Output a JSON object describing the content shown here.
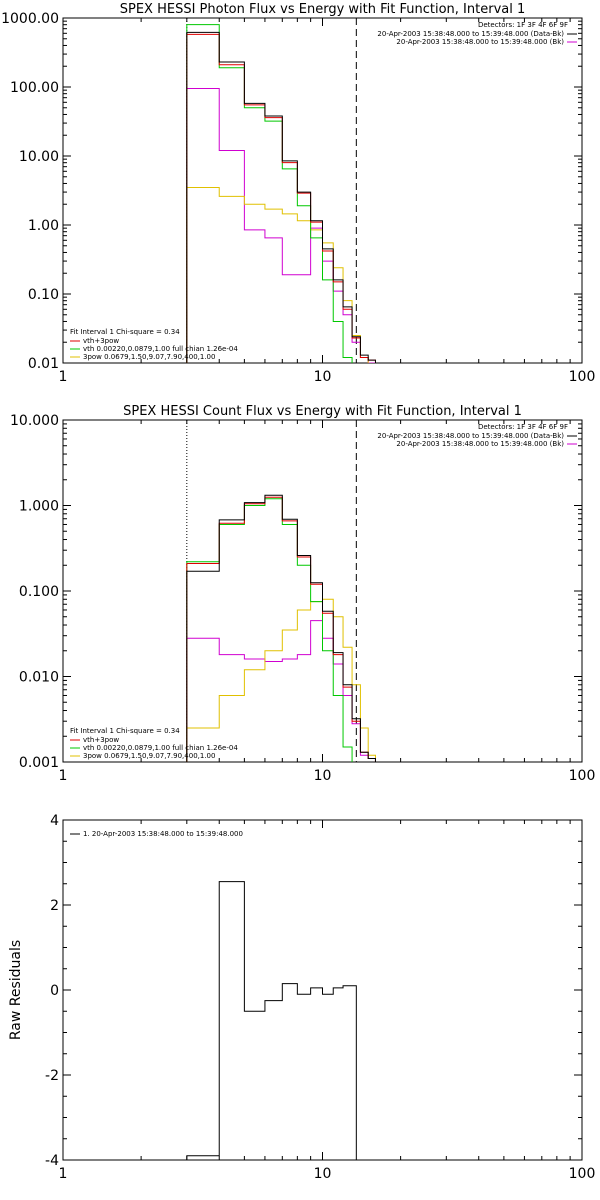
{
  "chart_data": [
    {
      "type": "line",
      "title": "SPEX HESSI Photon Flux vs Energy with Fit Function, Interval 1",
      "xlabel": "",
      "ylabel": "",
      "xscale": "log",
      "yscale": "log",
      "xlim": [
        1,
        100
      ],
      "ylim": [
        0.01,
        1000
      ],
      "x_ticks": [
        "1",
        "10",
        "100"
      ],
      "y_ticks": [
        "0.01",
        "0.10",
        "1.00",
        "10.00",
        "100.00",
        "1000.00"
      ],
      "bin_edges": [
        3.0,
        3.5,
        4.0,
        4.5,
        5.0,
        5.5,
        6.0,
        6.5,
        7.0,
        7.5,
        8.0,
        8.5,
        9.0,
        9.5,
        10.0,
        10.5,
        11.0,
        11.5,
        12.0,
        12.5,
        13.0,
        13.5,
        14.0,
        14.5,
        15.0,
        16.0
      ],
      "vlines": [
        {
          "x": 3.0,
          "style": "dotted",
          "color": "#000000"
        },
        {
          "x": 13.5,
          "style": "dashed",
          "color": "#000000"
        }
      ],
      "series": [
        {
          "name": "vth+3pow",
          "color": "#e00000",
          "values": [
            580,
            580,
            210,
            210,
            55,
            55,
            36,
            36,
            8,
            8,
            2.9,
            2.9,
            1.1,
            1.1,
            0.42,
            0.42,
            0.15,
            0.15,
            0.06,
            0.06,
            0.023,
            0.023,
            0.012,
            0.012,
            0.011
          ]
        },
        {
          "name": "data",
          "color": "#000000",
          "values": [
            620,
            620,
            230,
            230,
            58,
            58,
            38,
            38,
            8.5,
            8.5,
            3.0,
            3.0,
            1.15,
            1.15,
            0.45,
            0.45,
            0.16,
            0.16,
            0.065,
            0.065,
            0.024,
            0.024,
            0.013,
            0.013,
            0.011
          ]
        },
        {
          "name": "vth 0.00220,0.0879,1.00   full chian 1.26e-04",
          "color": "#00c800",
          "values": [
            800,
            800,
            190,
            190,
            50,
            50,
            32,
            32,
            6.5,
            6.5,
            1.9,
            1.9,
            0.65,
            0.65,
            0.16,
            0.16,
            0.04,
            0.04,
            0.012,
            0.012,
            0.008,
            0.008,
            0.008,
            0.008,
            0.008
          ]
        },
        {
          "name": "3pow 0.0679,1.50,9.07,7.90,400,1.00",
          "color": "#e0c000",
          "values": [
            3.5,
            3.5,
            2.6,
            2.6,
            2.0,
            2.0,
            1.7,
            1.7,
            1.45,
            1.45,
            1.15,
            1.15,
            0.85,
            0.85,
            0.55,
            0.55,
            0.24,
            0.24,
            0.08,
            0.08,
            0.025,
            0.025,
            0.012,
            0.012,
            0.009
          ]
        },
        {
          "name": "",
          "color": "#d000d0",
          "values": [
            95,
            95,
            12,
            12,
            0.85,
            0.85,
            0.65,
            0.65,
            0.19,
            0.19,
            0.19,
            0.19,
            0.9,
            0.9,
            0.3,
            0.3,
            0.11,
            0.11,
            0.05,
            0.05,
            0.02,
            0.02,
            0.012,
            0.012,
            0.01
          ]
        }
      ],
      "legend_top_right": {
        "detectors": "Detectors: 1F 3F 4F 6F 9F",
        "entries": [
          {
            "text": "20-Apr-2003 15:38:48.000 to 15:39:48.000 (Data-Bk)",
            "color": "#000000"
          },
          {
            "text": "20-Apr-2003 15:38:48.000 to 15:39:48.000 (Bk)",
            "color": "#d000d0"
          }
        ]
      },
      "legend_bottom_left": {
        "header": "Fit Interval  1    Chi-square = 0.34",
        "entries": [
          {
            "text": "vth+3pow",
            "color": "#e00000"
          },
          {
            "text": "vth 0.00220,0.0879,1.00   full chian 1.26e-04",
            "color": "#00c800"
          },
          {
            "text": "3pow 0.0679,1.50,9.07,7.90,400,1.00",
            "color": "#e0c000"
          }
        ]
      }
    },
    {
      "type": "line",
      "title": "SPEX HESSI Count Flux vs Energy with Fit Function, Interval 1",
      "xlabel": "",
      "ylabel": "",
      "xscale": "log",
      "yscale": "log",
      "xlim": [
        1,
        100
      ],
      "ylim": [
        0.001,
        10
      ],
      "x_ticks": [
        "1",
        "10",
        "100"
      ],
      "y_ticks": [
        "0.001",
        "0.010",
        "0.100",
        "1.000",
        "10.000"
      ],
      "bin_edges": [
        3.0,
        3.5,
        4.0,
        4.5,
        5.0,
        5.5,
        6.0,
        6.5,
        7.0,
        7.5,
        8.0,
        8.5,
        9.0,
        9.5,
        10.0,
        10.5,
        11.0,
        11.5,
        12.0,
        12.5,
        13.0,
        13.5,
        14.0,
        14.5,
        15.0,
        16.0
      ],
      "vlines": [
        {
          "x": 3.0,
          "style": "dotted",
          "color": "#000000"
        },
        {
          "x": 13.5,
          "style": "dashed",
          "color": "#000000"
        }
      ],
      "series": [
        {
          "name": "vth+3pow",
          "color": "#e00000",
          "values": [
            0.21,
            0.21,
            0.62,
            0.62,
            1.05,
            1.05,
            1.25,
            1.25,
            0.66,
            0.66,
            0.25,
            0.25,
            0.12,
            0.12,
            0.055,
            0.055,
            0.018,
            0.018,
            0.0075,
            0.0075,
            0.003,
            0.003,
            0.0013,
            0.0013,
            0.0011
          ]
        },
        {
          "name": "data",
          "color": "#000000",
          "values": [
            0.17,
            0.17,
            0.68,
            0.68,
            1.08,
            1.08,
            1.32,
            1.32,
            0.69,
            0.69,
            0.26,
            0.26,
            0.125,
            0.125,
            0.058,
            0.058,
            0.019,
            0.019,
            0.008,
            0.008,
            0.0032,
            0.0032,
            0.0013,
            0.0013,
            0.0011
          ]
        },
        {
          "name": "vth 0.00220,0.0879,1.00   full chian 1.26e-04",
          "color": "#00c800",
          "values": [
            0.22,
            0.22,
            0.6,
            0.6,
            1.0,
            1.0,
            1.2,
            1.2,
            0.6,
            0.6,
            0.2,
            0.2,
            0.075,
            0.075,
            0.02,
            0.02,
            0.006,
            0.006,
            0.0015,
            0.0015,
            0.0009,
            0.0009,
            0.0009,
            0.0009,
            0.0009
          ]
        },
        {
          "name": "3pow 0.0679,1.50,9.07,7.90,400,1.00",
          "color": "#e0c000",
          "values": [
            0.0025,
            0.0025,
            0.006,
            0.006,
            0.012,
            0.012,
            0.02,
            0.02,
            0.035,
            0.035,
            0.06,
            0.06,
            0.075,
            0.075,
            0.08,
            0.08,
            0.05,
            0.05,
            0.022,
            0.022,
            0.008,
            0.008,
            0.0025,
            0.0025,
            0.0012
          ]
        },
        {
          "name": "",
          "color": "#d000d0",
          "values": [
            0.028,
            0.028,
            0.018,
            0.018,
            0.016,
            0.016,
            0.015,
            0.015,
            0.016,
            0.016,
            0.018,
            0.018,
            0.045,
            0.045,
            0.028,
            0.028,
            0.014,
            0.014,
            0.006,
            0.006,
            0.0028,
            0.0028,
            0.0012,
            0.0012,
            0.0011
          ]
        }
      ],
      "legend_top_right": {
        "detectors": "Detectors: 1F 3F 4F 6F 9F",
        "entries": [
          {
            "text": "20-Apr-2003 15:38:48.000 to 15:39:48.000 (Data-Bk)",
            "color": "#000000"
          },
          {
            "text": "20-Apr-2003 15:38:48.000 to 15:39:48.000 (Bk)",
            "color": "#d000d0"
          }
        ]
      },
      "legend_bottom_left": {
        "header": "Fit Interval  1    Chi-square = 0.34",
        "entries": [
          {
            "text": "vth+3pow",
            "color": "#e00000"
          },
          {
            "text": "vth 0.00220,0.0879,1.00   full chian 1.26e-04",
            "color": "#00c800"
          },
          {
            "text": "3pow 0.0679,1.50,9.07,7.90,400,1.00",
            "color": "#e0c000"
          }
        ]
      }
    },
    {
      "type": "line",
      "title": "",
      "xlabel": "",
      "ylabel": "Raw Residuals",
      "xscale": "log",
      "yscale": "linear",
      "xlim": [
        1,
        100
      ],
      "ylim": [
        -4,
        4
      ],
      "x_ticks": [
        "1",
        "10",
        "100"
      ],
      "y_ticks": [
        "-4",
        "-2",
        "0",
        "2",
        "4"
      ],
      "bin_edges": [
        3.0,
        4.0,
        5.0,
        6.0,
        7.0,
        8.0,
        9.0,
        10.0,
        11.0,
        12.0,
        13.5
      ],
      "series": [
        {
          "name": "1. 20-Apr-2003 15:38:48.000 to 15:39:48.000",
          "color": "#000000",
          "values": [
            -3.9,
            2.55,
            -0.5,
            -0.25,
            0.15,
            -0.1,
            0.05,
            -0.1,
            0.05,
            0.1
          ]
        }
      ],
      "legend_top_left": {
        "entries": [
          {
            "text": "1. 20-Apr-2003 15:38:48.000 to 15:39:48.000",
            "color": "#000000"
          }
        ]
      }
    }
  ]
}
